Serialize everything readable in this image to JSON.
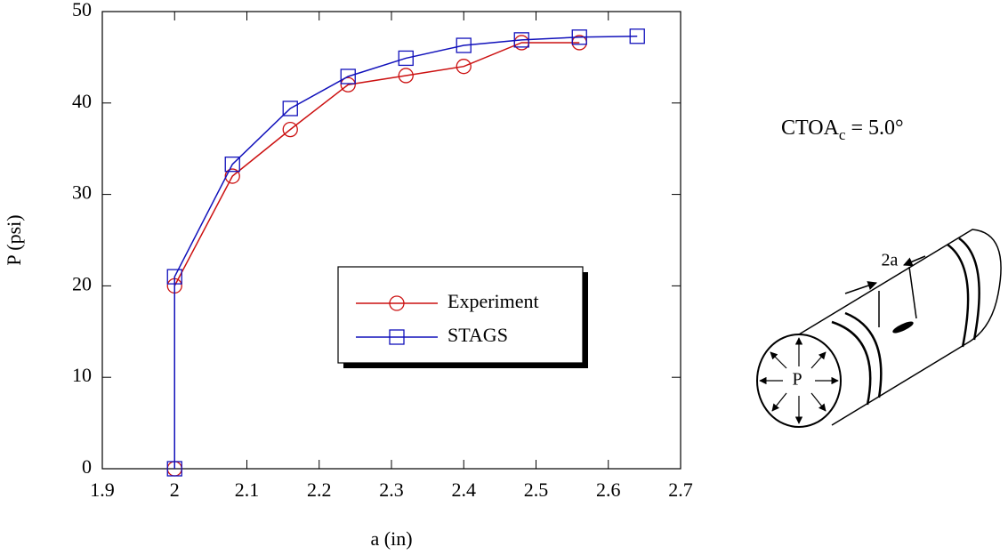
{
  "chart_data": {
    "type": "line",
    "xlabel": "a (in)",
    "ylabel": "P (psi)",
    "xlim": [
      1.9,
      2.7
    ],
    "xticks": [
      1.9,
      2,
      2.1,
      2.2,
      2.3,
      2.4,
      2.5,
      2.6,
      2.7
    ],
    "ylim": [
      0,
      50
    ],
    "yticks": [
      0,
      10,
      20,
      30,
      40,
      50
    ],
    "legend": "center-right",
    "series": [
      {
        "name": "Experiment",
        "color": "#cc1111",
        "marker": "circle",
        "x": [
          2,
          2,
          2.08,
          2.16,
          2.24,
          2.32,
          2.4,
          2.48,
          2.56
        ],
        "values": [
          0,
          20,
          32,
          37.1,
          42,
          43,
          44,
          46.6,
          46.6
        ]
      },
      {
        "name": "STAGS",
        "color": "#1111bb",
        "marker": "square",
        "x": [
          2,
          2,
          2.08,
          2.16,
          2.24,
          2.32,
          2.4,
          2.48,
          2.56,
          2.64
        ],
        "values": [
          0,
          21,
          33.3,
          39.4,
          42.9,
          44.9,
          46.3,
          46.9,
          47.2,
          47.3
        ]
      }
    ],
    "annotation": {
      "text": "CTOA",
      "subscript": "c",
      "suffix": " = 5.0°"
    }
  },
  "diagram": {
    "crack_label": "2a",
    "pressure_label": "P"
  }
}
